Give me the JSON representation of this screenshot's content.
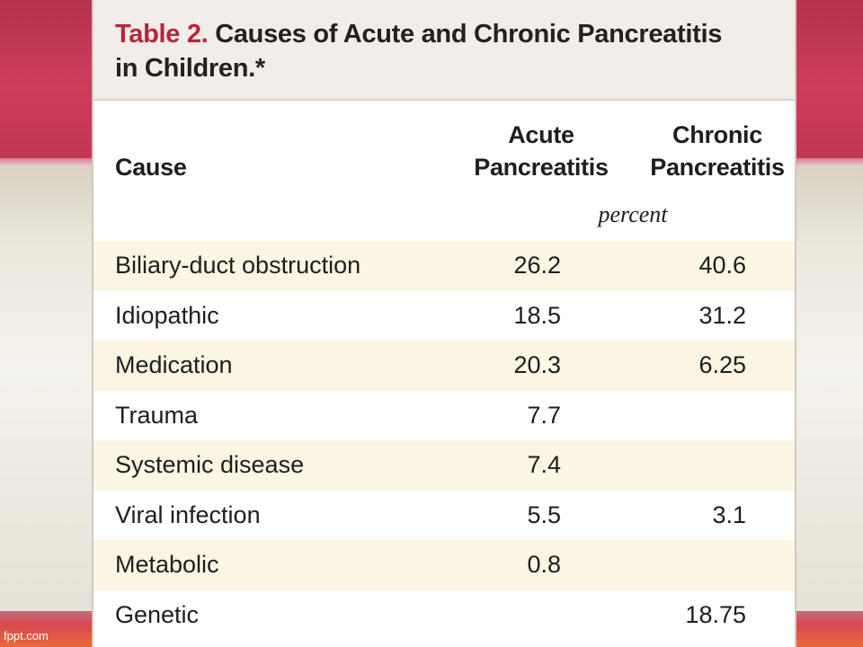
{
  "footer": {
    "site": "fppt.com"
  },
  "table": {
    "caption_label": "Table 2.",
    "caption_line1_rest": " Causes of Acute and Chronic Pancreatitis",
    "caption_line2": "in Children.*",
    "headers": {
      "cause": "Cause",
      "acute_line1": "Acute",
      "acute_line2": "Pancreatitis",
      "chronic_line1": "Chronic",
      "chronic_line2": "Pancreatitis"
    },
    "unit": "percent",
    "rows": [
      {
        "cause": "Biliary-duct obstruction",
        "acute": "26.2",
        "chronic": "40.6"
      },
      {
        "cause": "Idiopathic",
        "acute": "18.5",
        "chronic": "31.2"
      },
      {
        "cause": "Medication",
        "acute": "20.3",
        "chronic": "6.25"
      },
      {
        "cause": "Trauma",
        "acute": "7.7",
        "chronic": ""
      },
      {
        "cause": "Systemic disease",
        "acute": "7.4",
        "chronic": ""
      },
      {
        "cause": "Viral infection",
        "acute": "5.5",
        "chronic": "3.1"
      },
      {
        "cause": "Metabolic",
        "acute": "0.8",
        "chronic": ""
      },
      {
        "cause": "Genetic",
        "acute": "",
        "chronic": "18.75"
      }
    ]
  },
  "colors": {
    "caption_label": "#b8243a",
    "row_shade": "#fbf5e4",
    "slide_band": "#c23654"
  }
}
